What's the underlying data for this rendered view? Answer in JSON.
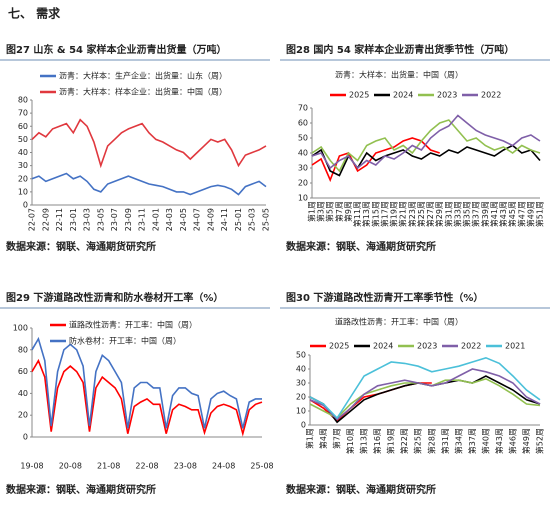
{
  "section_title": "七、 需求",
  "chart_data": [
    {
      "type": "line",
      "title": "图27  山东 & 54 家样本企业沥青出货量（万吨）",
      "source": "数据来源：钢联、海通期货研究所",
      "categories": [
        "22-07",
        null,
        "22-09",
        null,
        "22-11",
        null,
        "23-01",
        null,
        "23-03",
        null,
        "23-05",
        null,
        "23-07",
        null,
        "23-09",
        null,
        "23-11",
        null,
        "24-01",
        null,
        "24-03",
        null,
        "24-05",
        null,
        "24-07",
        null,
        "24-09",
        null,
        "24-11",
        null,
        "25-01",
        null,
        "25-03",
        null,
        "25-05"
      ],
      "ylim": [
        0,
        80
      ],
      "yticks": [
        0,
        10,
        20,
        30,
        40,
        50,
        60,
        70,
        80
      ],
      "series": [
        {
          "name": "沥青：大样本：生产企业：出货量：山东（周）",
          "color": "#4472c4",
          "values": [
            20,
            22,
            18,
            20,
            22,
            24,
            20,
            22,
            18,
            12,
            10,
            16,
            18,
            20,
            22,
            20,
            18,
            16,
            15,
            14,
            12,
            10,
            10,
            8,
            10,
            12,
            14,
            15,
            14,
            12,
            8,
            14,
            16,
            18,
            14
          ]
        },
        {
          "name": "沥青：大样本：样本企业：出货量：中国（周）",
          "color": "#e0383e",
          "values": [
            50,
            55,
            52,
            58,
            60,
            62,
            55,
            65,
            60,
            48,
            30,
            45,
            50,
            55,
            58,
            60,
            62,
            55,
            50,
            48,
            45,
            42,
            40,
            35,
            40,
            45,
            50,
            48,
            50,
            42,
            30,
            38,
            40,
            42,
            45
          ]
        }
      ]
    },
    {
      "type": "line",
      "title": "图28  国内 54 家样本企业沥青出货季节性（万吨）",
      "subtitle": "沥青：大样本：出货量：中国（周）",
      "source": "数据来源：钢联、海通期货研究所",
      "categories": [
        "第1周",
        "第3周",
        "第5周",
        "第7周",
        "第9周",
        "第11周",
        "第13周",
        "第15周",
        "第17周",
        "第19周",
        "第21周",
        "第23周",
        "第25周",
        "第27周",
        "第29周",
        "第31周",
        "第33周",
        "第35周",
        "第37周",
        "第39周",
        "第41周",
        "第43周",
        "第45周",
        "第47周",
        "第49周",
        "第51周"
      ],
      "ylim": [
        10,
        70
      ],
      "yticks": [
        10,
        20,
        30,
        40,
        50,
        60,
        70
      ],
      "series": [
        {
          "name": "2025",
          "color": "#ff0000",
          "values": [
            32,
            36,
            22,
            38,
            40,
            28,
            32,
            40,
            42,
            44,
            48,
            50,
            48,
            42,
            40,
            null,
            null,
            null,
            null,
            null,
            null,
            null,
            null,
            null,
            null,
            null
          ]
        },
        {
          "name": "2024",
          "color": "#000000",
          "values": [
            38,
            42,
            28,
            25,
            38,
            30,
            40,
            35,
            38,
            40,
            42,
            38,
            36,
            40,
            38,
            42,
            40,
            44,
            42,
            40,
            38,
            42,
            45,
            40,
            42,
            35
          ]
        },
        {
          "name": "2023",
          "color": "#92c050",
          "values": [
            40,
            44,
            35,
            28,
            40,
            35,
            45,
            48,
            50,
            42,
            45,
            40,
            48,
            55,
            60,
            62,
            55,
            48,
            50,
            45,
            42,
            44,
            40,
            45,
            42,
            40
          ]
        },
        {
          "name": "2022",
          "color": "#7f5fa8",
          "values": [
            38,
            40,
            30,
            35,
            38,
            30,
            35,
            32,
            38,
            36,
            40,
            45,
            42,
            50,
            55,
            58,
            65,
            60,
            55,
            52,
            50,
            48,
            45,
            50,
            52,
            48
          ]
        }
      ]
    },
    {
      "type": "line",
      "title": "图29  下游道路改性沥青和防水卷材开工率（%）",
      "source": "数据来源：钢联、海通期货研究所",
      "categories": [
        "19-08",
        null,
        null,
        null,
        null,
        null,
        "20-08",
        null,
        null,
        null,
        null,
        null,
        "21-08",
        null,
        null,
        null,
        null,
        null,
        "22-08",
        null,
        null,
        null,
        null,
        null,
        "23-08",
        null,
        null,
        null,
        null,
        null,
        "24-08",
        null,
        null,
        null,
        null,
        null,
        "25-08"
      ],
      "ylim": [
        0,
        100
      ],
      "yticks": [
        0,
        20,
        40,
        60,
        80,
        100
      ],
      "series": [
        {
          "name": "道路改性沥青：开工率：中国（周）",
          "color": "#ff0000",
          "values": [
            60,
            70,
            55,
            5,
            45,
            60,
            65,
            60,
            50,
            5,
            45,
            55,
            50,
            45,
            35,
            3,
            28,
            32,
            35,
            30,
            30,
            3,
            25,
            30,
            28,
            25,
            25,
            4,
            22,
            28,
            30,
            28,
            25,
            3,
            25,
            30,
            32
          ]
        },
        {
          "name": "防水卷材：开工率：中国（周）",
          "color": "#4472c4",
          "values": [
            80,
            90,
            70,
            10,
            60,
            80,
            85,
            80,
            65,
            10,
            60,
            75,
            70,
            60,
            50,
            8,
            45,
            50,
            50,
            45,
            45,
            8,
            38,
            45,
            45,
            40,
            38,
            8,
            35,
            40,
            42,
            38,
            35,
            8,
            32,
            35,
            35
          ]
        }
      ]
    },
    {
      "type": "line",
      "title": "图30  下游道路改性沥青开工率季节性（%）",
      "subtitle": "道路改性沥青：开工率：中国（周）",
      "source": "数据来源：钢联、海通期货研究所",
      "categories": [
        "第1周",
        "第4周",
        "第7周",
        "第10周",
        "第13周",
        "第16周",
        "第19周",
        "第22周",
        "第25周",
        "第28周",
        "第31周",
        "第34周",
        "第37周",
        "第40周",
        "第43周",
        "第46周",
        "第49周",
        "第52周"
      ],
      "ylim": [
        0,
        50
      ],
      "yticks": [
        0,
        10,
        20,
        30,
        40,
        50
      ],
      "series": [
        {
          "name": "2025",
          "color": "#ff0000",
          "values": [
            18,
            12,
            3,
            12,
            20,
            22,
            25,
            28,
            30,
            30,
            null,
            null,
            null,
            null,
            null,
            null,
            null,
            null
          ]
        },
        {
          "name": "2024",
          "color": "#000000",
          "values": [
            20,
            15,
            2,
            10,
            18,
            22,
            25,
            28,
            30,
            28,
            30,
            32,
            30,
            35,
            30,
            25,
            18,
            15
          ]
        },
        {
          "name": "2023",
          "color": "#92c050",
          "values": [
            15,
            10,
            5,
            15,
            22,
            25,
            28,
            30,
            30,
            28,
            32,
            32,
            30,
            33,
            28,
            22,
            15,
            14
          ]
        },
        {
          "name": "2022",
          "color": "#7f5fa8",
          "values": [
            18,
            14,
            4,
            12,
            22,
            28,
            30,
            32,
            30,
            28,
            30,
            35,
            40,
            38,
            35,
            30,
            20,
            15
          ]
        },
        {
          "name": "2021",
          "color": "#4bc0d9",
          "values": [
            20,
            15,
            5,
            20,
            35,
            40,
            45,
            44,
            42,
            38,
            40,
            42,
            45,
            48,
            44,
            35,
            25,
            18
          ]
        }
      ]
    }
  ]
}
